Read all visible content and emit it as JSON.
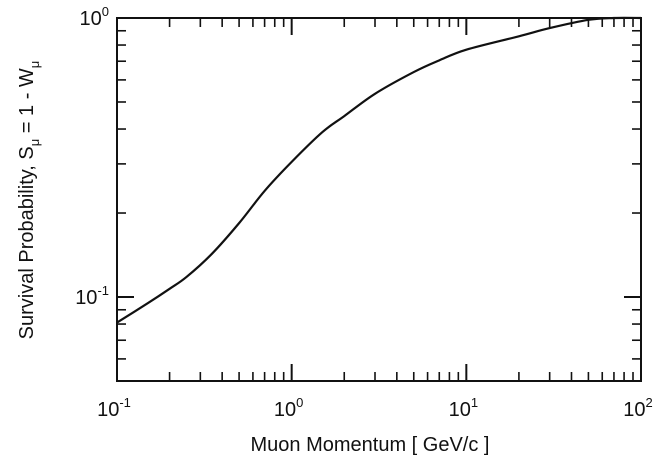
{
  "chart_data": {
    "type": "line",
    "title": "",
    "xlabel": "Muon Momentum  [ GeV/c ]",
    "ylabel": {
      "prefix": "Survival  Probability, S",
      "sub1": "μ",
      "middle": " = 1 - W",
      "sub2": "μ"
    },
    "x_scale": "log",
    "y_scale": "log",
    "xlim": [
      0.1,
      100
    ],
    "ylim": [
      0.05,
      1.0
    ],
    "grid": false,
    "legend": "none",
    "x_ticks": [
      {
        "value": 0.1,
        "base": "10",
        "exp": "-1"
      },
      {
        "value": 1,
        "base": "10",
        "exp": "0"
      },
      {
        "value": 10,
        "base": "10",
        "exp": "1"
      },
      {
        "value": 100,
        "base": "10",
        "exp": "2"
      }
    ],
    "y_ticks": [
      {
        "value": 0.1,
        "base": "10",
        "exp": "-1"
      },
      {
        "value": 1,
        "base": "10",
        "exp": "0"
      }
    ],
    "series": [
      {
        "x": [
          0.1,
          0.15,
          0.2,
          0.25,
          0.35,
          0.5,
          0.7,
          1.0,
          1.5,
          2,
          3,
          5,
          7,
          10,
          20,
          30,
          50,
          70,
          100
        ],
        "y": [
          0.081,
          0.095,
          0.107,
          0.118,
          0.143,
          0.184,
          0.24,
          0.305,
          0.39,
          0.445,
          0.535,
          0.64,
          0.705,
          0.77,
          0.86,
          0.92,
          0.985,
          1.0,
          1.0
        ]
      }
    ],
    "color": "#111111"
  }
}
